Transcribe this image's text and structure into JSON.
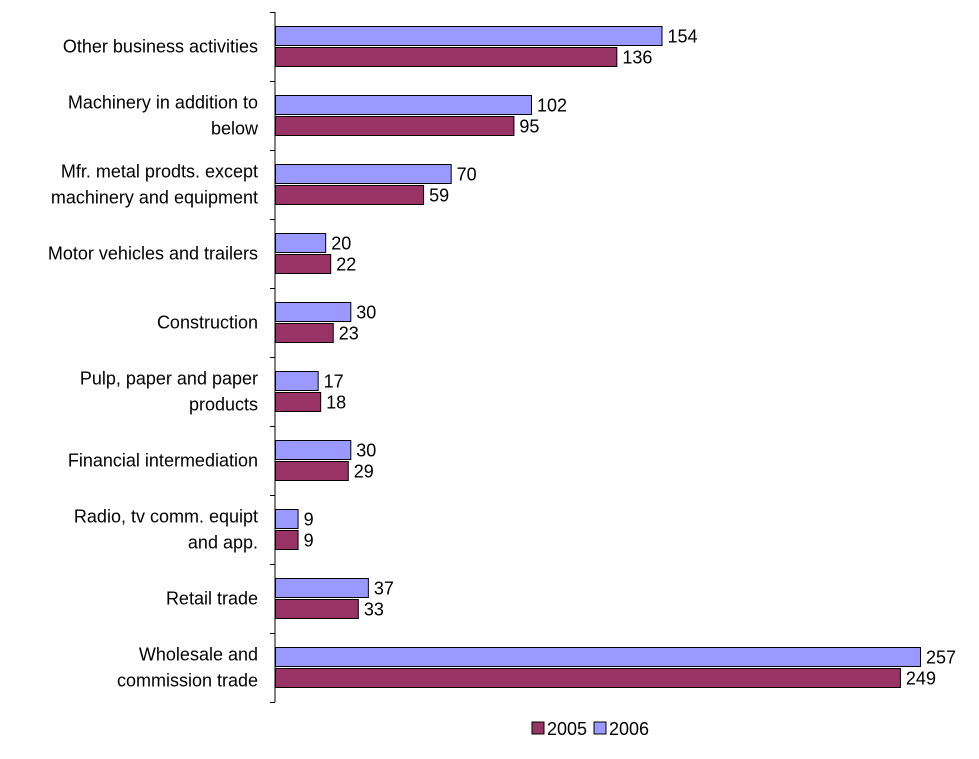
{
  "chart_data": {
    "type": "bar",
    "orientation": "horizontal",
    "categories": [
      [
        "Other business activities"
      ],
      [
        "Machinery in addition to",
        "below"
      ],
      [
        "Mfr. metal prodts. except",
        "machinery and equipment"
      ],
      [
        "Motor vehicles and trailers"
      ],
      [
        "Construction"
      ],
      [
        "Pulp, paper and paper",
        "products"
      ],
      [
        "Financial intermediation"
      ],
      [
        "Radio, tv comm. equipt",
        "and app."
      ],
      [
        "Retail trade"
      ],
      [
        "Wholesale and",
        "commission trade"
      ]
    ],
    "series": [
      {
        "name": "2006",
        "color": "#9999ff",
        "values": [
          154,
          102,
          70,
          20,
          30,
          17,
          30,
          9,
          37,
          257
        ]
      },
      {
        "name": "2005",
        "color": "#993366",
        "values": [
          136,
          95,
          59,
          22,
          23,
          18,
          29,
          9,
          33,
          249
        ]
      }
    ],
    "legend_order": [
      "2005",
      "2006"
    ],
    "legend_position": "bottom",
    "xlim": [
      0,
      257
    ],
    "grid": false,
    "title": "",
    "xlabel": "",
    "ylabel": ""
  }
}
